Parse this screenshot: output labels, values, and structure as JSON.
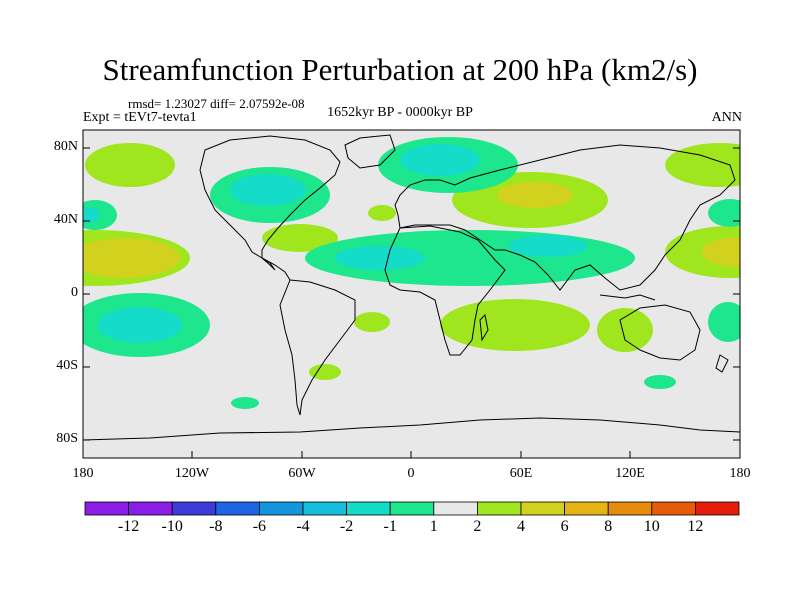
{
  "title": "Streamfunction Perturbation at 200 hPa (km2/s)",
  "stats": "rmsd= 1.23027 diff= 2.07592e-08",
  "experiment": "Expt = tEVt7-tevta1",
  "period": "1652kyr BP - 0000kyr BP",
  "season": "ANN",
  "lat_labels": [
    "80N",
    "40N",
    "0",
    "40S",
    "80S"
  ],
  "lon_labels": [
    "180",
    "120W",
    "60W",
    "0",
    "60E",
    "120E",
    "180"
  ],
  "colorbar": {
    "labels": [
      "-12",
      "-10",
      "-8",
      "-6",
      "-4",
      "-2",
      "-1",
      "1",
      "2",
      "4",
      "6",
      "8",
      "10",
      "12"
    ],
    "colors": [
      "#8a1ee6",
      "#3c3cdc",
      "#1e64e6",
      "#1496dc",
      "#14bedc",
      "#14dcc8",
      "#1ee68c",
      "#e8e8e8",
      "#a0e61e",
      "#d2d21e",
      "#e6b414",
      "#e68c0a",
      "#e65a0a",
      "#e61e0a"
    ]
  }
}
